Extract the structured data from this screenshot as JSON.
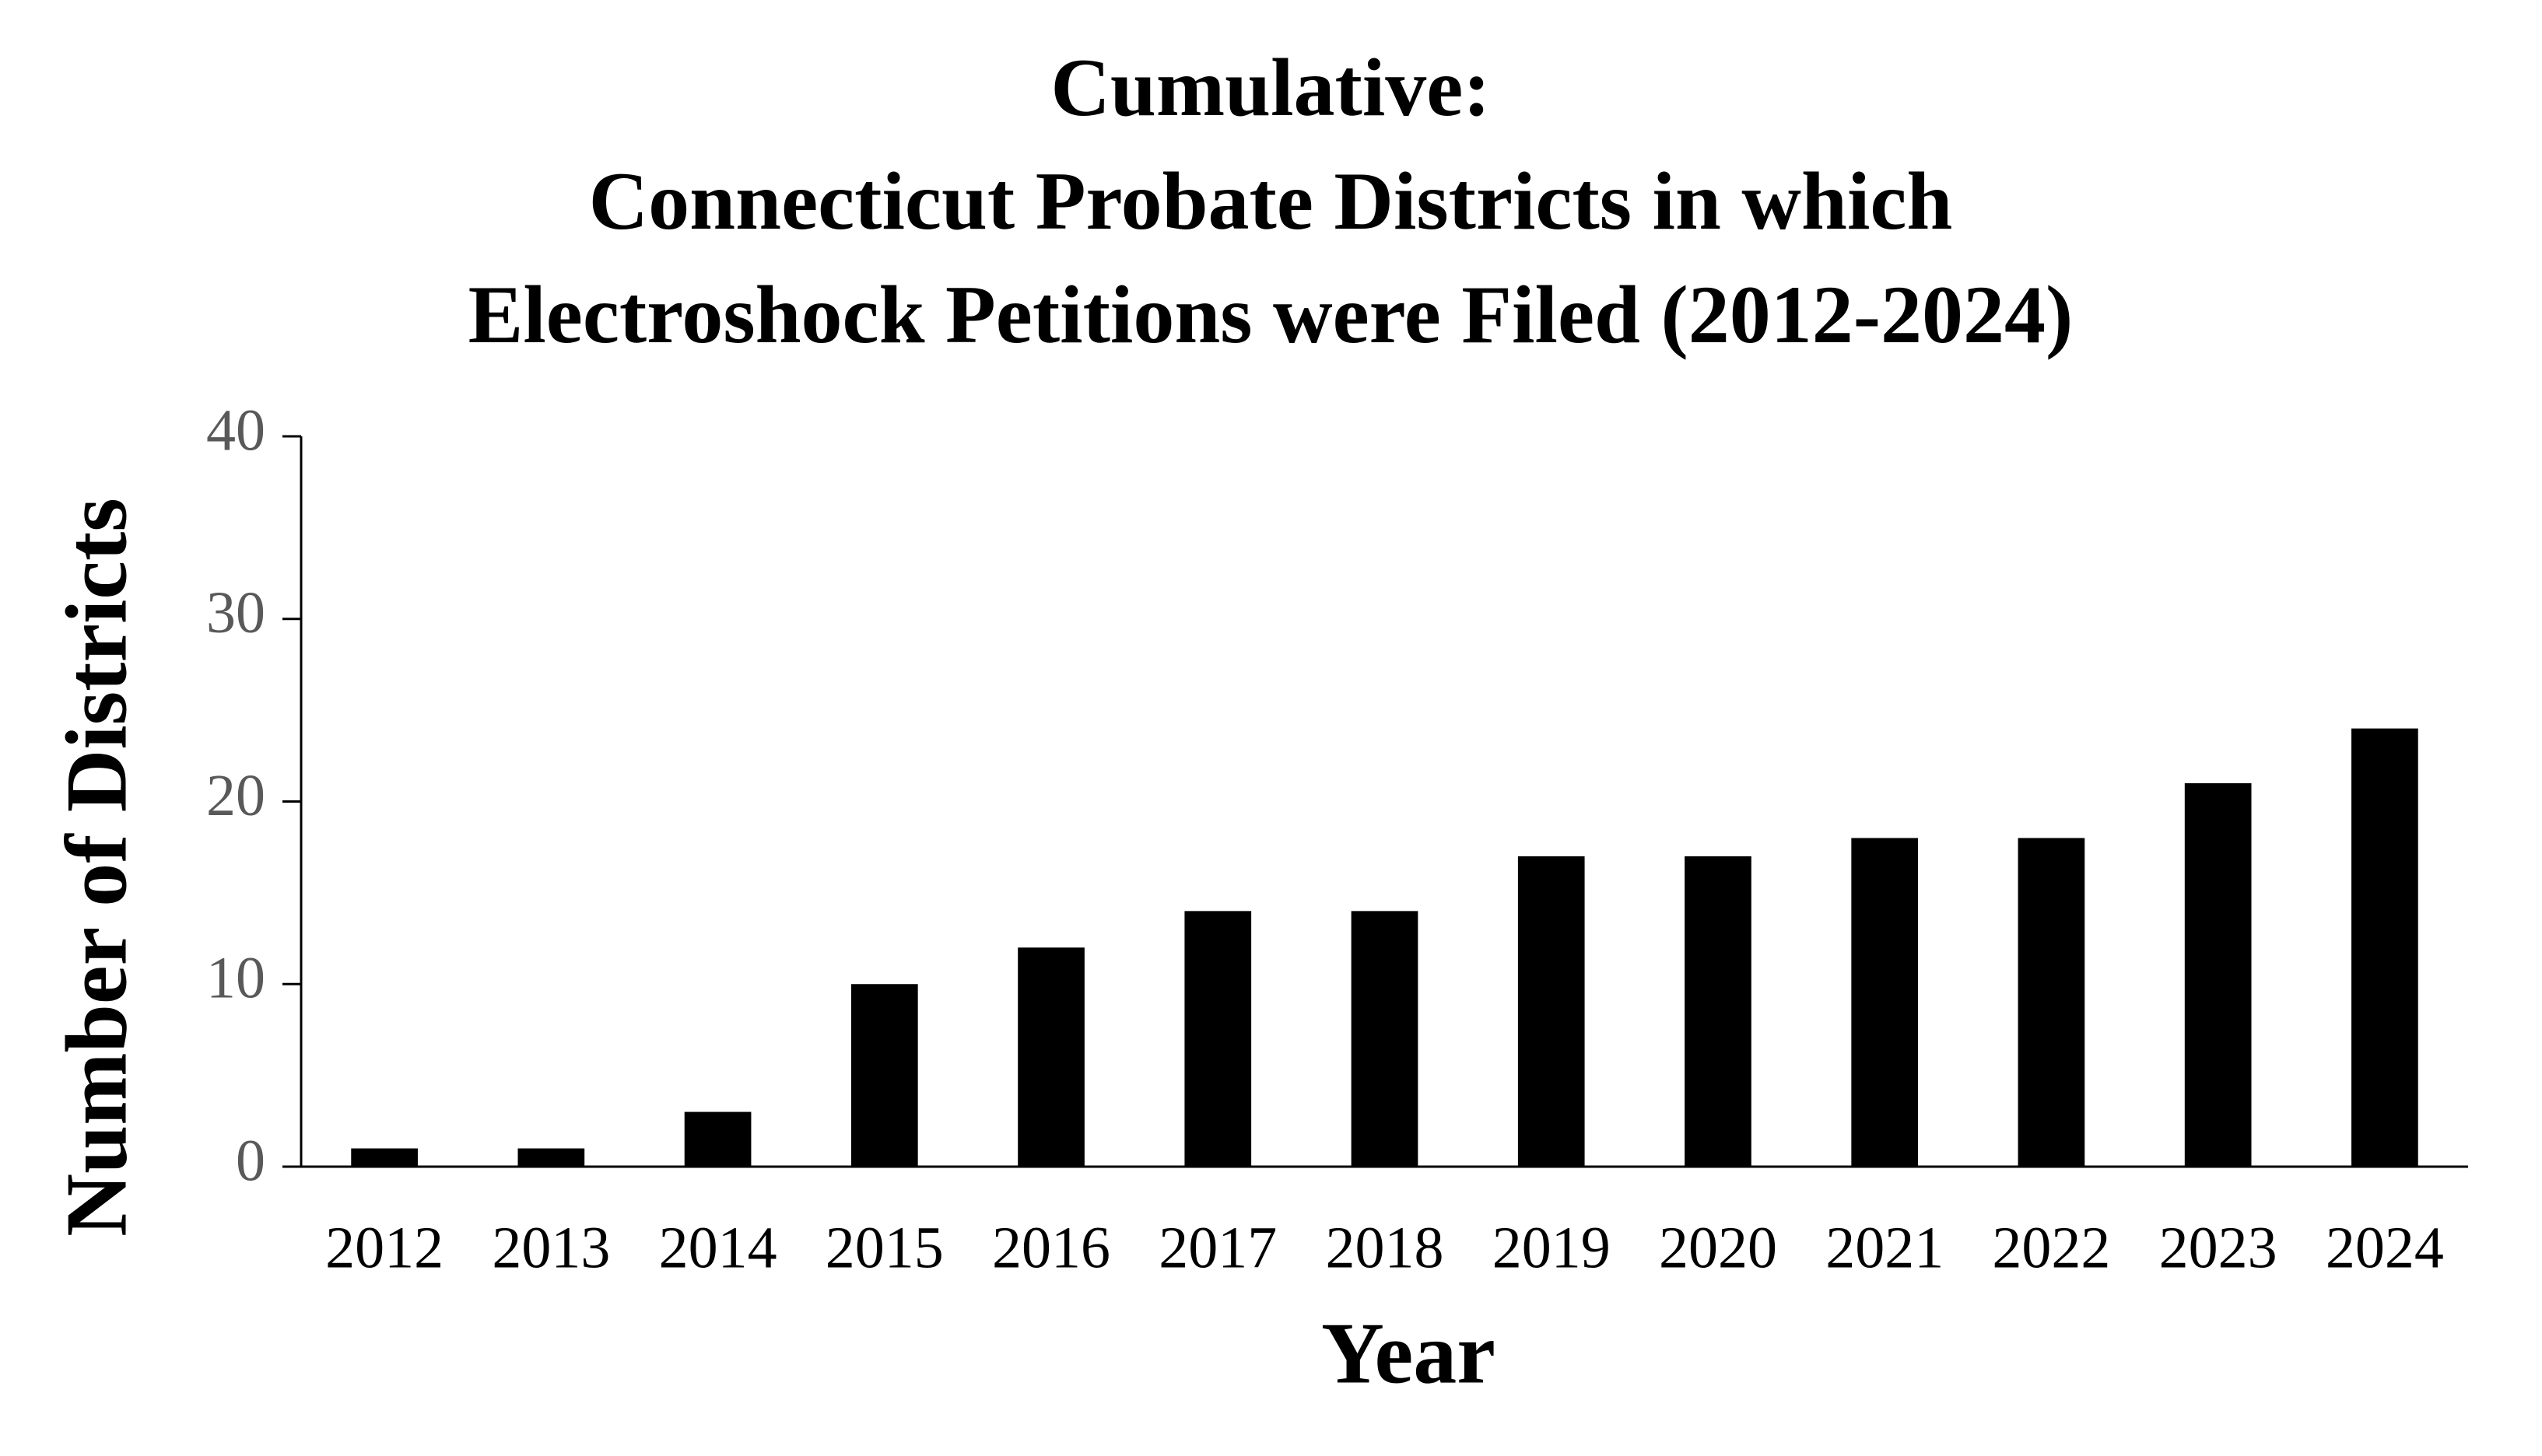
{
  "chart_data": {
    "type": "bar",
    "title": [
      "Cumulative:",
      "Connecticut Probate Districts in which",
      "Electroshock Petitions were Filed (2012-2024)"
    ],
    "x_label": "Year",
    "y_label": "Number of Districts",
    "categories": [
      "2012",
      "2013",
      "2014",
      "2015",
      "2016",
      "2017",
      "2018",
      "2019",
      "2020",
      "2021",
      "2022",
      "2023",
      "2024"
    ],
    "values": [
      1,
      1,
      3,
      10,
      12,
      14,
      14,
      17,
      17,
      18,
      18,
      21,
      24
    ],
    "color": "#000000",
    "ylim": [
      0,
      40
    ],
    "yticks": [
      0,
      10,
      20,
      30,
      40
    ],
    "grid": false
  }
}
